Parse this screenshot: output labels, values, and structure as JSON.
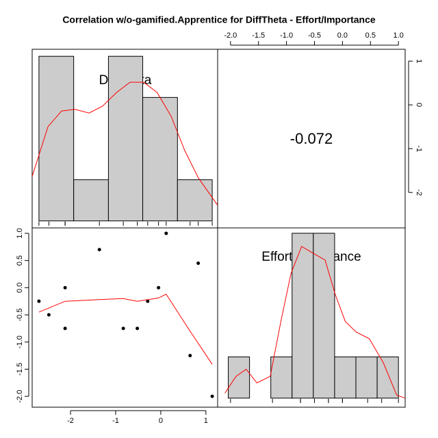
{
  "chart_data": {
    "type": "pairs",
    "title": "Correlation w/o-gamified.Apprentice for DiffTheta - Effort/Importance",
    "variables": [
      "DiffTheta",
      "Effort/Importance"
    ],
    "correlation": -0.072,
    "scatter": {
      "x": [
        -2.7,
        -2.48,
        -2.12,
        -2.12,
        -1.36,
        -0.83,
        -0.52,
        -0.29,
        -0.05,
        0.12,
        0.83,
        0.65,
        1.14
      ],
      "values": [
        -0.25,
        -0.5,
        0,
        -0.75,
        0.7,
        -0.75,
        -0.75,
        -0.25,
        0,
        1.0,
        0.45,
        -1.25,
        -2.0
      ],
      "color": "#000000",
      "xlim": [
        -2.85,
        1.26
      ],
      "ylim": [
        -2.2,
        1.1
      ],
      "xticks": [
        -2,
        -1,
        0,
        1
      ],
      "yticks": [
        {
          "value": 1.0,
          "label": "1.0"
        },
        {
          "value": 0.5,
          "label": "0.5"
        },
        {
          "value": 0,
          "label": "0.0"
        },
        {
          "value": -0.5,
          "label": "-0.5"
        },
        {
          "value": -1.0,
          "label": "-1.0"
        },
        {
          "value": -1.5,
          "label": "-1.5"
        },
        {
          "value": -2.0,
          "label": "-2.0"
        }
      ],
      "smooth": {
        "x": [
          -2.7,
          -2.12,
          -1.36,
          -0.83,
          -0.52,
          -0.05,
          0.12,
          0.61,
          1.14
        ],
        "values": [
          -0.45,
          -0.25,
          -0.22,
          -0.2,
          -0.25,
          -0.19,
          -0.12,
          -0.75,
          -1.41
        ],
        "color": "#ff0000"
      }
    },
    "upper": {
      "xlim": [
        -2.23,
        1.12
      ],
      "ylim": [
        -2.81,
        1.27
      ],
      "xticks": [
        {
          "value": -2.0,
          "label": "-2.0"
        },
        {
          "value": -1.5,
          "label": "-1.5"
        },
        {
          "value": -1.0,
          "label": "-1.0"
        },
        {
          "value": -0.5,
          "label": "-0.5"
        },
        {
          "value": 0,
          "label": "0.0"
        },
        {
          "value": 0.5,
          "label": "0.5"
        },
        {
          "value": 1.0,
          "label": "1.0"
        }
      ],
      "yticks": [
        -2,
        -1,
        0,
        1
      ]
    },
    "histograms": [
      {
        "bins": [
          -2.7,
          -1.93,
          -1.16,
          -0.4,
          0.37,
          1.14
        ],
        "counts": [
          4,
          1,
          4,
          3,
          1
        ],
        "ylim": [
          -0.17,
          4.17
        ],
        "color": "#cccccc",
        "density": {
          "x": [
            -2.85,
            -2.5,
            -2.2,
            -1.9,
            -1.59,
            -1.29,
            -0.98,
            -0.68,
            -0.38,
            -0.08,
            0.23,
            0.53,
            0.83,
            1.26
          ],
          "values": [
            1.08,
            2.29,
            2.67,
            2.71,
            2.62,
            2.79,
            3.12,
            3.37,
            3.37,
            3.12,
            2.54,
            1.71,
            1.05,
            0.38
          ],
          "color": "#ff0000"
        }
      },
      {
        "bins": [
          -2.04,
          -1.66,
          -1.28,
          -0.9,
          -0.52,
          -0.14,
          0.24,
          0.62,
          1.0
        ],
        "counts": [
          1,
          0,
          1,
          4,
          4,
          1,
          1,
          1
        ],
        "ylim": [
          -0.22,
          4.13
        ],
        "color": "#cccccc",
        "density": {
          "x": [
            -2.1,
            -1.9,
            -1.72,
            -1.53,
            -1.29,
            -1.1,
            -0.92,
            -0.73,
            -0.53,
            -0.31,
            -0.13,
            0.05,
            0.24,
            0.48,
            0.73,
            0.97,
            1.12
          ],
          "values": [
            0.12,
            0.53,
            0.7,
            0.37,
            0.53,
            1.86,
            3.02,
            3.68,
            3.52,
            3.35,
            2.52,
            1.86,
            1.61,
            1.44,
            0.86,
            0.07,
            0
          ],
          "color": "#ff0000"
        }
      }
    ]
  }
}
